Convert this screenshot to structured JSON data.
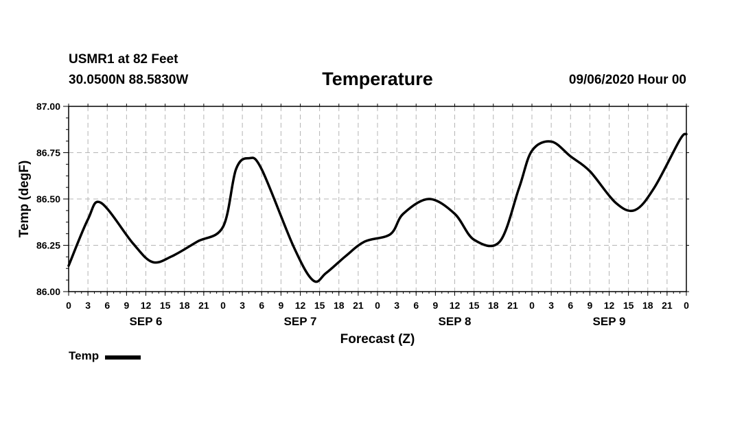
{
  "header": {
    "station": "USMR1 at 82 Feet",
    "coords": "30.0500N 88.5830W",
    "date": "09/06/2020 Hour 00"
  },
  "colors": {
    "line": "#000000",
    "grid": "#b4b4b4",
    "axis": "#000000"
  },
  "chart_data": {
    "type": "line",
    "title": "Temperature",
    "xlabel": "Forecast (Z)",
    "ylabel": "Temp (degF)",
    "ylim": [
      86.0,
      87.0
    ],
    "xlim": [
      0,
      96
    ],
    "grid": true,
    "legend_position": "bottom-left",
    "y_ticks": [
      "86.00",
      "86.25",
      "86.50",
      "86.75",
      "87.00"
    ],
    "x_ticks": [
      "0",
      "3",
      "6",
      "9",
      "12",
      "15",
      "18",
      "21",
      "0",
      "3",
      "6",
      "9",
      "12",
      "15",
      "18",
      "21",
      "0",
      "3",
      "6",
      "9",
      "12",
      "15",
      "18",
      "21",
      "0",
      "3",
      "6",
      "9",
      "12",
      "15",
      "18",
      "21",
      "0"
    ],
    "day_labels": [
      "SEP 6",
      "SEP 7",
      "SEP 8",
      "SEP 9"
    ],
    "series": [
      {
        "name": "Temp",
        "x": [
          0,
          3,
          5,
          10,
          13,
          16,
          20,
          24,
          26,
          28,
          30,
          35,
          38,
          40,
          43,
          46,
          50,
          52,
          56,
          60,
          63,
          67,
          70,
          72,
          75,
          78,
          81,
          85,
          88,
          91,
          95,
          96
        ],
        "y": [
          86.14,
          86.39,
          86.48,
          86.26,
          86.16,
          86.19,
          86.27,
          86.35,
          86.66,
          86.72,
          86.66,
          86.24,
          86.06,
          86.1,
          86.19,
          86.27,
          86.31,
          86.42,
          86.5,
          86.42,
          86.28,
          86.27,
          86.56,
          86.76,
          86.81,
          86.73,
          86.65,
          86.48,
          86.44,
          86.56,
          86.82,
          86.85
        ]
      }
    ]
  }
}
